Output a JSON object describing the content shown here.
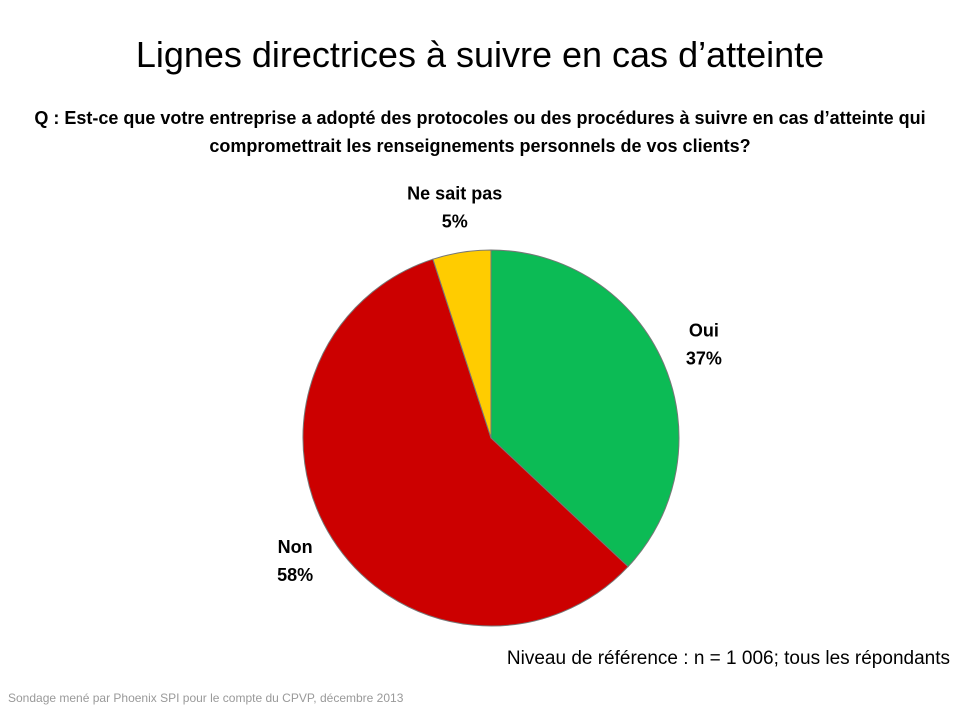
{
  "chart_data": {
    "type": "pie",
    "title": "Lignes directrices à suivre en cas d’atteinte",
    "subtitle": "Q : Est-ce que votre entreprise a adopté des protocoles ou des procédures à suivre en cas d’atteinte qui compromettrait les renseignements personnels de vos clients?",
    "categories": [
      "Oui",
      "Non",
      "Ne sait pas"
    ],
    "values": [
      37,
      58,
      5
    ],
    "value_labels": [
      "37%",
      "58%",
      "5%"
    ],
    "colors": [
      "#0cbb55",
      "#cc0000",
      "#ffcc00"
    ],
    "note": "Niveau de référence : n = 1 006; tous les répondants",
    "source": "Sondage mené par Phoenix SPI pour le compte du CPVP, décembre 2013"
  }
}
